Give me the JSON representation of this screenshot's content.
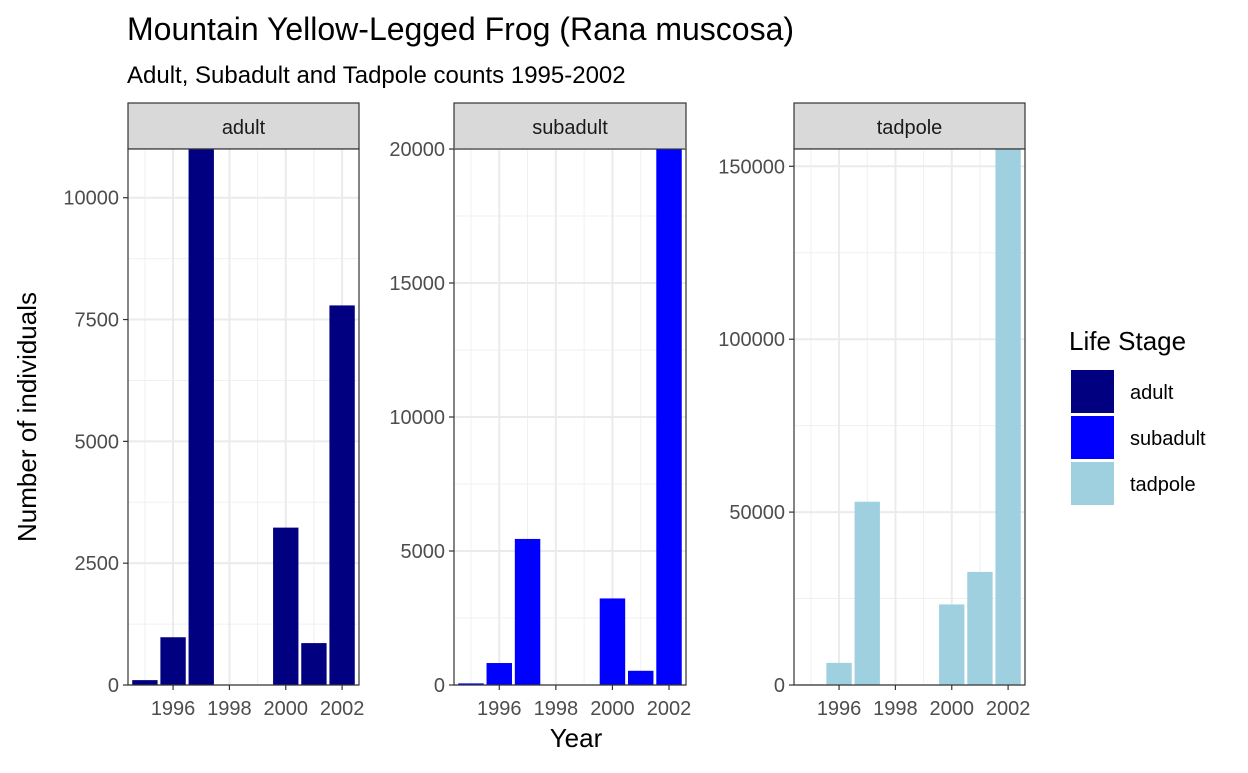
{
  "chart_data": {
    "type": "bar",
    "title": "Mountain Yellow-Legged Frog (Rana muscosa)",
    "subtitle": "Adult, Subadult and Tadpole counts 1995-2002",
    "xlabel": "Year",
    "ylabel": "Number of individuals",
    "x": [
      1995,
      1996,
      1997,
      1998,
      1999,
      2000,
      2001,
      2002
    ],
    "x_ticks": [
      "1996",
      "1998",
      "2000",
      "2002"
    ],
    "legend": {
      "title": "Life Stage",
      "position": "right"
    },
    "grid": true,
    "facets": [
      {
        "name": "adult",
        "color": "#000080",
        "ylim": [
          0,
          11000
        ],
        "y_ticks": [
          0,
          2500,
          5000,
          7500,
          10000
        ],
        "y_tick_labels": [
          "0",
          "2500",
          "5000",
          "7500",
          "10000"
        ],
        "values": [
          100,
          980,
          11000,
          0,
          0,
          3230,
          860,
          7790
        ]
      },
      {
        "name": "subadult",
        "color": "#0000FF",
        "ylim": [
          0,
          20000
        ],
        "y_ticks": [
          0,
          5000,
          10000,
          15000,
          20000
        ],
        "y_tick_labels": [
          "0",
          "5000",
          "10000",
          "15000",
          "20000"
        ],
        "values": [
          60,
          820,
          5450,
          0,
          0,
          3230,
          530,
          20000
        ]
      },
      {
        "name": "tadpole",
        "color": "#9FD0E0",
        "ylim": [
          0,
          155000
        ],
        "y_ticks": [
          0,
          50000,
          100000,
          150000
        ],
        "y_tick_labels": [
          "0",
          "50000",
          "100000",
          "150000"
        ],
        "values": [
          200,
          6400,
          53000,
          0,
          0,
          23300,
          32700,
          155000
        ]
      }
    ]
  }
}
